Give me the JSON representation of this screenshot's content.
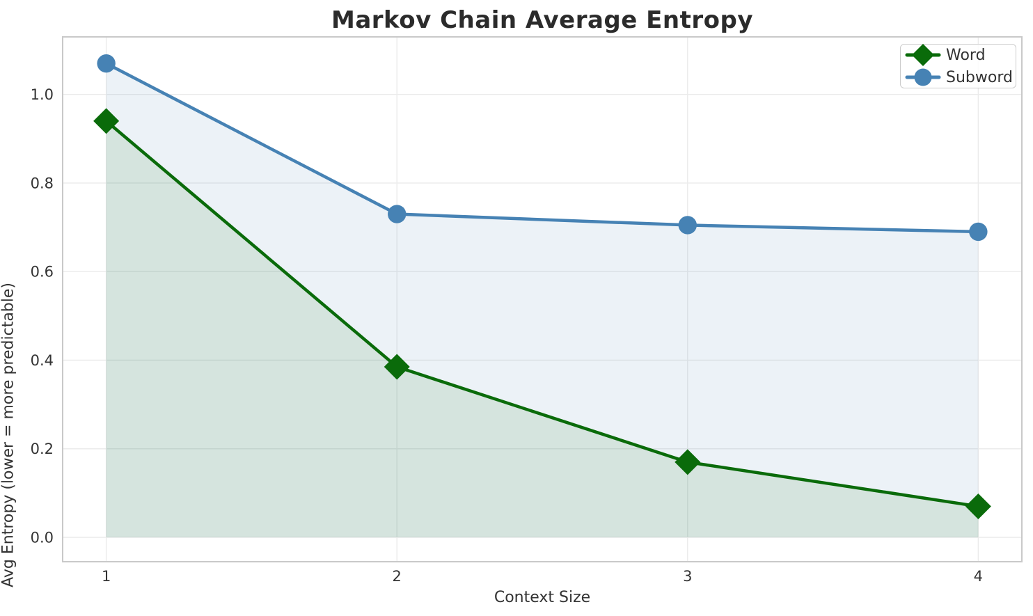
{
  "chart_data": {
    "type": "line",
    "title": "Markov Chain Average Entropy",
    "xlabel": "Context Size",
    "ylabel": "Avg Entropy (lower = more predictable)",
    "x": [
      1,
      2,
      3,
      4
    ],
    "x_tick_labels": [
      "1",
      "2",
      "3",
      "4"
    ],
    "y_ticks": [
      0.0,
      0.2,
      0.4,
      0.6,
      0.8,
      1.0
    ],
    "y_tick_labels": [
      "0.0",
      "0.2",
      "0.4",
      "0.6",
      "0.8",
      "1.0"
    ],
    "xlim": [
      0.85,
      4.15
    ],
    "ylim": [
      -0.055,
      1.13
    ],
    "grid": true,
    "legend_position": "top-right",
    "series": [
      {
        "name": "Word",
        "marker": "diamond",
        "color": "#0a6b0a",
        "fill_alpha": 0.1,
        "values": [
          0.94,
          0.385,
          0.17,
          0.07
        ]
      },
      {
        "name": "Subword",
        "marker": "circle",
        "color": "#4682b4",
        "fill_alpha": 0.1,
        "values": [
          1.07,
          0.73,
          0.705,
          0.69
        ]
      }
    ]
  },
  "colors": {
    "background": "#ffffff",
    "grid": "#ebebeb",
    "spine": "#c9c9c9",
    "tick_text": "#333333",
    "title_text": "#2b2b2b"
  }
}
